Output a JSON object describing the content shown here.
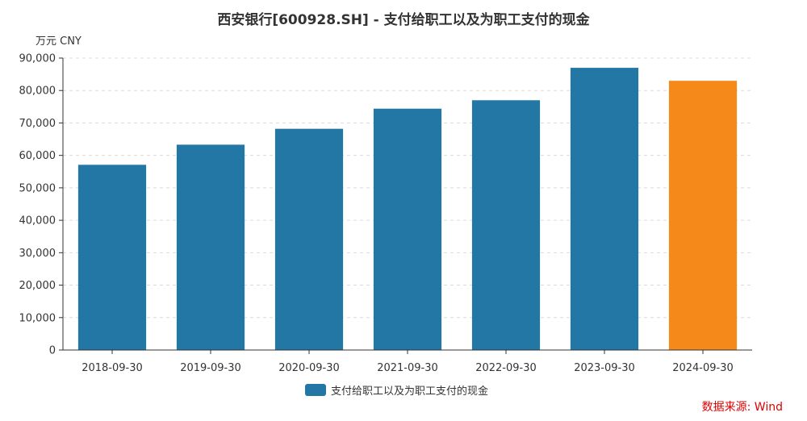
{
  "chart_data": {
    "type": "bar",
    "title": "西安银行[600928.SH] - 支付给职工以及为职工支付的现金",
    "unit_label": "万元  CNY",
    "categories": [
      "2018-09-30",
      "2019-09-30",
      "2020-09-30",
      "2021-09-30",
      "2022-09-30",
      "2023-09-30",
      "2024-09-30"
    ],
    "series": [
      {
        "name": "支付给职工以及为职工支付的现金",
        "values": [
          57100,
          63300,
          68200,
          74400,
          77000,
          87000,
          83000
        ],
        "color": "#2277a4",
        "highlight_color": "#f5891a",
        "highlight_index": 6
      }
    ],
    "yticks": [
      "0",
      "10,000",
      "20,000",
      "30,000",
      "40,000",
      "50,000",
      "60,000",
      "70,000",
      "80,000",
      "90,000"
    ],
    "ylim": [
      0,
      90000
    ],
    "grid": true,
    "legend_position": "bottom-center",
    "source": "数据来源: Wind"
  }
}
